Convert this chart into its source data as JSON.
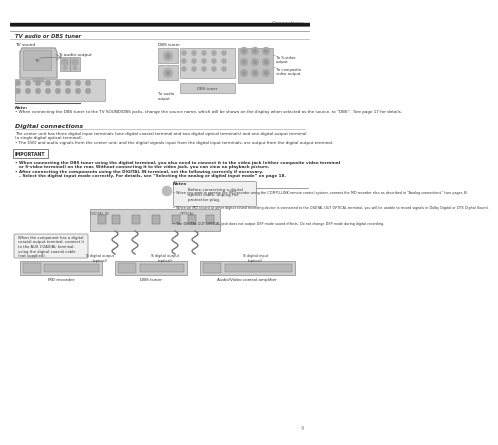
{
  "bg_color": "#ffffff",
  "page_header_right": "Connections",
  "section_title": "TV audio or DBS tuner",
  "tv_sound_label": "TV sound",
  "dbs_tuner_label": "DBS tuner",
  "note_title": "Note:",
  "note_bullet": "When connecting the DBS tuner to the TV SOUND/DBS jacks, change the source name, which will be shown on the display when selected as the source, to “DBS”.  See page 17 for details.",
  "digital_connections_title": "Digital connections",
  "dc_line1": "The center unit has three digital input terminals (one digital coaxial terminal and two digital optical terminals) and one digital output terminal",
  "dc_line2": "(a single digital optical terminal).",
  "dc_bullet": "The DVD and audio signals from the center unit, and the digital signals input from the digital input terminals, are output from the digital output terminal.",
  "important_title": "IMPORTANT",
  "imp_b1_line1": "When connecting the DBS tuner using the digital terminal, you also need to connect it to the video jack (either composite video terminal",
  "imp_b1_line2": "or S-video terminal) on the rear. Without connecting it to the video jack, you can view no playback picture.",
  "imp_b2_line1": "After connecting the components using the DIGITAL IN terminal, set the following correctly if necessary.",
  "imp_b2_line2": "– Select the digital input mode correctly. For details, see “Selecting the analog or digital input mode” on page 18.",
  "callout1_text": "Before connecting a digital\noptical cable, unplug the\nprotective plug.",
  "callout2_text": "When the component has a digital\ncoaxial output terminal, connect it\nto the AUX COAXIAL terminal,\nusing the digital coaxial cable\n(not supplied).",
  "label_to_dig_out_opt1": "To digital output\n(optical)",
  "label_to_dig_out_opt2": "To digital output\n(optical)",
  "label_to_dig_in_opt": "To digital input\n(optical)",
  "label_dbs_tuner": "DBS tuner",
  "label_md_recorder": "MD recorder",
  "label_av_amp": "Audio/Video control amplifier",
  "notes_header": "Notes",
  "note2_b1": "When you want to operate the MD recorder using the COMPU-LINK remote control system, connect the MD recorder also as described in “Analog connections” (see pages 8).",
  "note2_b2": "When an MD record or other digital sound recording device is connected to the DIGITAL OUT OPTICAL terminal, you will be unable to record signals in Dolby Digital or DTS Digital Sound.",
  "note2_b3": "The DIGITAL OUT OPTICAL jack does not output DSP mode sound effects. Do not change DSP mode during digital recording.",
  "to_audio_output": "To audio output",
  "to_s_video": "To S-video\noutput",
  "to_composite": "To composite\nvideo output",
  "to_audio_out2": "To audio\noutput",
  "tv_label": "TV",
  "page_number": "9",
  "col_dark": "#1a1a1a",
  "col_gray_line": "#999999",
  "col_text": "#333333",
  "col_diagram_bg": "#cccccc",
  "col_diagram_dark": "#888888",
  "col_box_light": "#e8e8e8"
}
